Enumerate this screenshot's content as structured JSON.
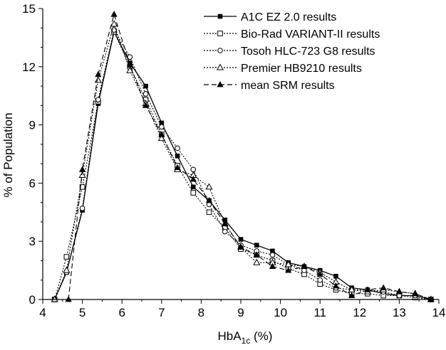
{
  "chart_data": {
    "type": "line",
    "xlabel_main": "HbA",
    "xlabel_sub": "1c",
    "xlabel_unit": "(%)",
    "ylabel": "% of Population",
    "xlim": [
      4,
      14
    ],
    "ylim": [
      0,
      15
    ],
    "xticks": [
      4,
      5,
      6,
      7,
      8,
      9,
      10,
      11,
      12,
      13,
      14
    ],
    "yticks": [
      0,
      3,
      6,
      9,
      12,
      15
    ],
    "grid": false,
    "legend_position": "top-right",
    "series": [
      {
        "name": "A1C EZ 2.0 results",
        "marker": "square-filled",
        "dash": "solid",
        "points": [
          [
            4.3,
            0
          ],
          [
            4.6,
            1.4
          ],
          [
            5,
            4.6
          ],
          [
            5.4,
            10.1
          ],
          [
            5.8,
            13.8
          ],
          [
            6.2,
            12.2
          ],
          [
            6.6,
            11
          ],
          [
            7,
            9.1
          ],
          [
            7.4,
            7.4
          ],
          [
            7.8,
            5.8
          ],
          [
            8.2,
            5.1
          ],
          [
            8.6,
            4.1
          ],
          [
            9,
            3.1
          ],
          [
            9.4,
            2.8
          ],
          [
            9.8,
            2.5
          ],
          [
            10.2,
            1.9
          ],
          [
            10.6,
            1.7
          ],
          [
            11,
            1.5
          ],
          [
            11.4,
            1.2
          ],
          [
            11.8,
            0.6
          ],
          [
            12.2,
            0.5
          ],
          [
            12.6,
            0.3
          ],
          [
            13,
            0.2
          ],
          [
            13.4,
            0.2
          ],
          [
            13.8,
            0
          ]
        ]
      },
      {
        "name": "Bio-Rad VARIANT-II results",
        "marker": "square-open",
        "dash": "dotted",
        "points": [
          [
            4.3,
            0
          ],
          [
            4.6,
            2.2
          ],
          [
            5,
            5.8
          ],
          [
            5.4,
            10.2
          ],
          [
            5.8,
            13.8
          ],
          [
            6.2,
            12
          ],
          [
            6.6,
            10.3
          ],
          [
            7,
            8.5
          ],
          [
            7.4,
            6.9
          ],
          [
            7.8,
            5.5
          ],
          [
            8.2,
            4.5
          ],
          [
            8.6,
            3.7
          ],
          [
            9,
            2.6
          ],
          [
            9.4,
            2.3
          ],
          [
            9.8,
            2
          ],
          [
            10.2,
            1.6
          ],
          [
            10.6,
            1.3
          ],
          [
            11,
            0.8
          ],
          [
            11.4,
            0.5
          ],
          [
            11.8,
            0.3
          ],
          [
            12.2,
            0.3
          ],
          [
            12.6,
            0.2
          ],
          [
            13,
            0.2
          ],
          [
            13.4,
            0.1
          ],
          [
            13.8,
            0
          ]
        ]
      },
      {
        "name": "Tosoh HLC-723 G8 results",
        "marker": "circle-open",
        "dash": "dotted",
        "points": [
          [
            4.3,
            0
          ],
          [
            4.6,
            1.4
          ],
          [
            5,
            4.7
          ],
          [
            5.4,
            10.3
          ],
          [
            5.8,
            13.9
          ],
          [
            6.2,
            12.5
          ],
          [
            6.6,
            10.6
          ],
          [
            7,
            8.9
          ],
          [
            7.4,
            7.8
          ],
          [
            7.8,
            6.7
          ],
          [
            8.2,
            4.9
          ],
          [
            8.6,
            3.5
          ],
          [
            9,
            2.8
          ],
          [
            9.4,
            2.5
          ],
          [
            9.8,
            2.3
          ],
          [
            10.2,
            1.8
          ],
          [
            10.6,
            1.5
          ],
          [
            11,
            1
          ],
          [
            11.4,
            0.6
          ],
          [
            11.8,
            0.5
          ],
          [
            12.2,
            0.5
          ],
          [
            12.6,
            0.4
          ],
          [
            13,
            0.2
          ],
          [
            13.4,
            0.2
          ],
          [
            13.8,
            0
          ]
        ]
      },
      {
        "name": "Premier HB9210 results",
        "marker": "triangle-open",
        "dash": "dotted",
        "points": [
          [
            4.3,
            0
          ],
          [
            4.6,
            1.5
          ],
          [
            5,
            6.4
          ],
          [
            5.4,
            11.3
          ],
          [
            5.8,
            14.2
          ],
          [
            6.2,
            11.8
          ],
          [
            6.6,
            10.1
          ],
          [
            7,
            8.3
          ],
          [
            7.4,
            6.7
          ],
          [
            7.8,
            6.4
          ],
          [
            8.2,
            5.8
          ],
          [
            8.6,
            3.9
          ],
          [
            9,
            2.7
          ],
          [
            9.4,
            1.9
          ],
          [
            9.8,
            1.9
          ],
          [
            10.2,
            1.8
          ],
          [
            10.6,
            1.7
          ],
          [
            11,
            1.4
          ],
          [
            11.4,
            0.9
          ],
          [
            11.8,
            0.5
          ],
          [
            12.2,
            0.4
          ],
          [
            12.6,
            0.5
          ],
          [
            13,
            0.4
          ],
          [
            13.4,
            0.3
          ],
          [
            13.8,
            0
          ]
        ]
      },
      {
        "name": "mean SRM results",
        "marker": "triangle-filled",
        "dash": "dashed",
        "points": [
          [
            4.65,
            0
          ],
          [
            5,
            6.7
          ],
          [
            5.4,
            11.6
          ],
          [
            5.8,
            14.7
          ],
          [
            6.2,
            12.1
          ],
          [
            6.6,
            10
          ],
          [
            7,
            8.5
          ],
          [
            7.4,
            6.8
          ],
          [
            7.8,
            6.2
          ],
          [
            8.2,
            5.1
          ],
          [
            8.6,
            3.9
          ],
          [
            9,
            2.7
          ],
          [
            9.4,
            2.3
          ],
          [
            9.8,
            1.7
          ],
          [
            10.2,
            1.5
          ],
          [
            10.6,
            1.7
          ],
          [
            11,
            1.3
          ],
          [
            11.4,
            0.7
          ],
          [
            11.8,
            0.2
          ],
          [
            12.2,
            0.5
          ],
          [
            12.6,
            0.6
          ],
          [
            13,
            0.4
          ],
          [
            13.4,
            0.3
          ],
          [
            13.8,
            0
          ]
        ]
      }
    ]
  }
}
